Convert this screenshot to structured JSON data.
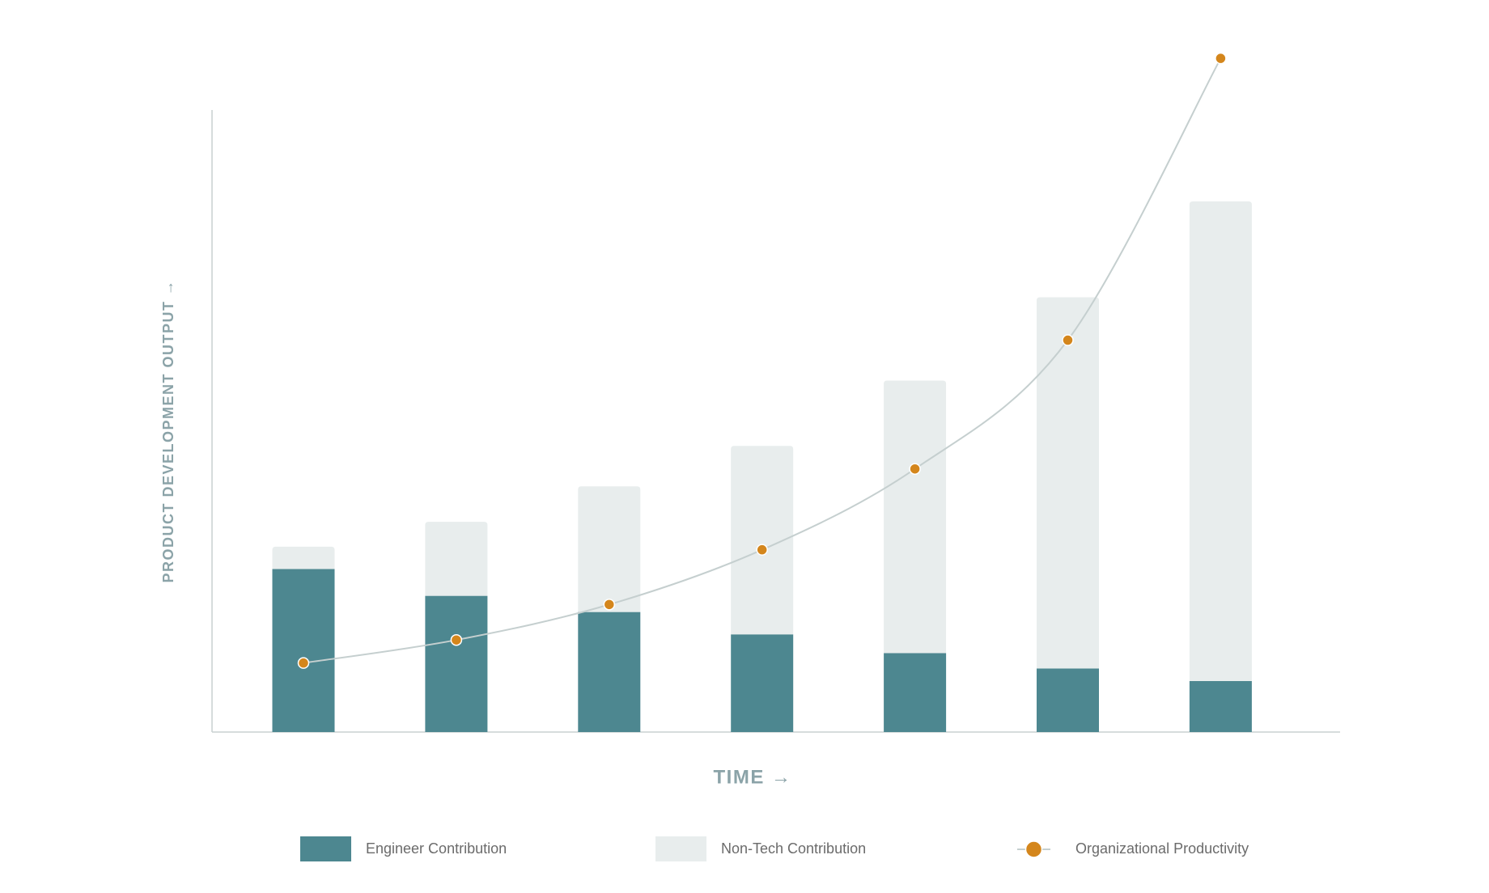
{
  "chart_data": {
    "type": "bar",
    "stacked": true,
    "x_label": "TIME →",
    "y_label": "PRODUCT DEVELOPMENT OUTPUT →",
    "categories": [
      null,
      null,
      null,
      null,
      null,
      null,
      null
    ],
    "ylim": [
      0,
      100
    ],
    "series": [
      {
        "name": "Engineer Contribution",
        "color": "#4d8790",
        "values": [
          26.2,
          21.9,
          19.3,
          15.7,
          12.7,
          10.2,
          8.2
        ]
      },
      {
        "name": "Non-Tech Contribution",
        "color": "#e8eded",
        "values": [
          3.6,
          11.9,
          20.2,
          30.3,
          43.8,
          59.7,
          77.1
        ]
      },
      {
        "name": "Organizational Productivity",
        "type": "line",
        "color": "#d4861c",
        "line_color": "#c5cfcf",
        "values": [
          11.1,
          14.8,
          20.5,
          29.3,
          42.3,
          63.0,
          108.3
        ]
      }
    ]
  }
}
